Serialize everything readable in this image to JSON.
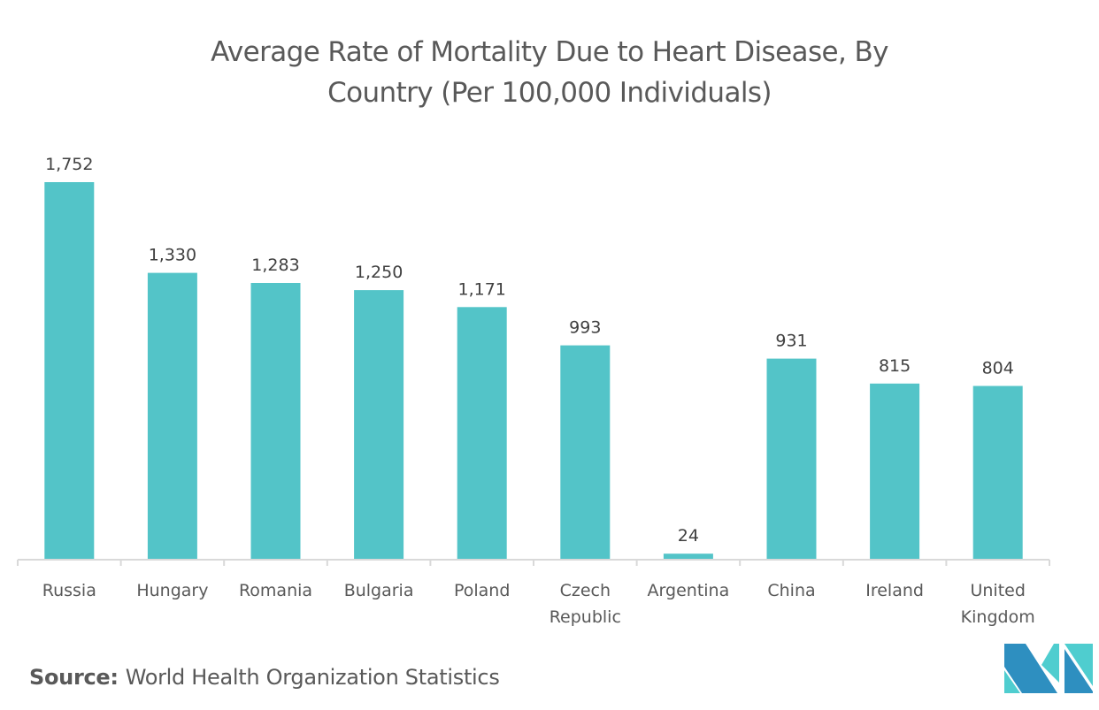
{
  "chart_data": {
    "type": "bar",
    "title": [
      "Average Rate of Mortality Due to Heart Disease, By",
      "Country (Per 100,000 Individuals)"
    ],
    "xlabel": "",
    "ylabel": "",
    "ylim": [
      0,
      1752
    ],
    "grid": false,
    "categories": [
      [
        "Russia"
      ],
      [
        "Hungary"
      ],
      [
        "Romania"
      ],
      [
        "Bulgaria"
      ],
      [
        "Poland"
      ],
      [
        "Czech",
        "Republic"
      ],
      [
        "Argentina"
      ],
      [
        "China"
      ],
      [
        "Ireland"
      ],
      [
        "United",
        "Kingdom"
      ]
    ],
    "values": [
      1752,
      1330,
      1283,
      1250,
      1171,
      993,
      24,
      931,
      815,
      804
    ],
    "data_labels": [
      "1,752",
      "1,330",
      "1,283",
      "1,250",
      "1,171",
      "993",
      "24",
      "931",
      "815",
      "804"
    ],
    "bar_color": "#53c4c8"
  },
  "source": {
    "label": "Source:",
    "text": "World Health Organization Statistics"
  },
  "logo": {
    "colors": [
      "#2e8fc0",
      "#4fcdcf"
    ]
  }
}
